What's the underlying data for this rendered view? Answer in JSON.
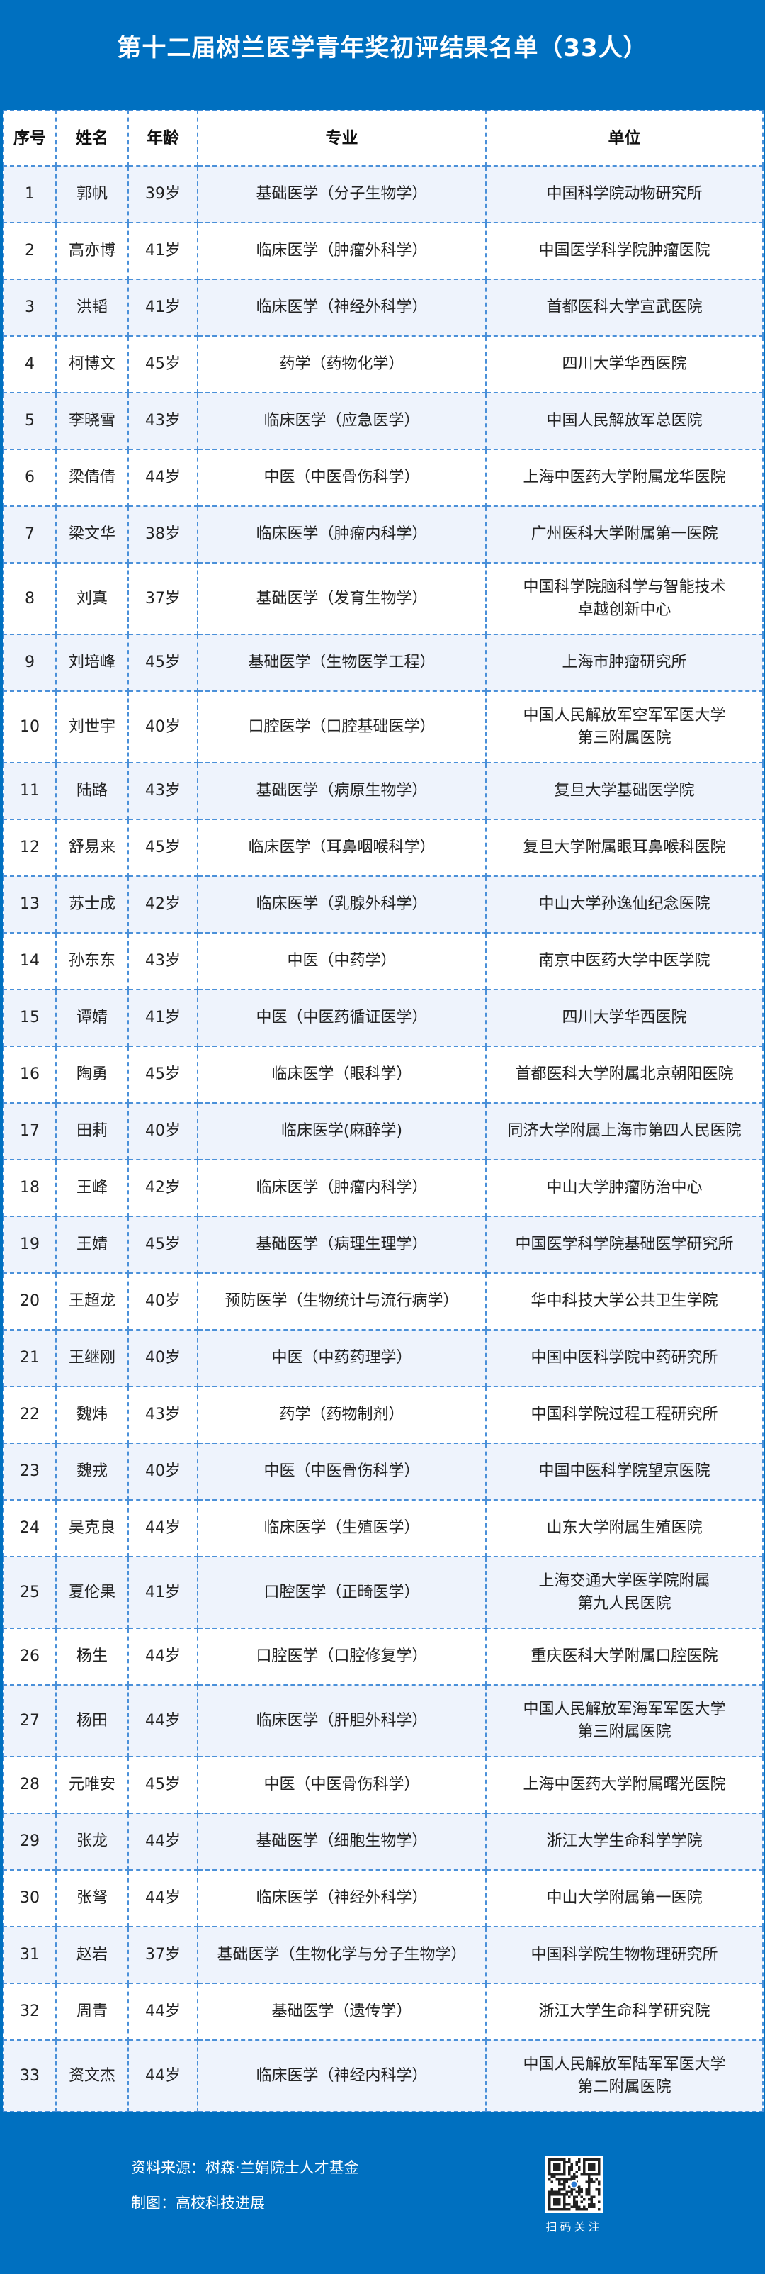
{
  "title": "第十二届树兰医学青年奖初评结果名单（33人）",
  "columns": [
    "序号",
    "姓名",
    "年龄",
    "专业",
    "单位"
  ],
  "rows": [
    [
      "1",
      "郭帆",
      "39岁",
      "基础医学（分子生物学）",
      "中国科学院动物研究所"
    ],
    [
      "2",
      "高亦博",
      "41岁",
      "临床医学（肿瘤外科学）",
      "中国医学科学院肿瘤医院"
    ],
    [
      "3",
      "洪韬",
      "41岁",
      "临床医学（神经外科学）",
      "首都医科大学宣武医院"
    ],
    [
      "4",
      "柯博文",
      "45岁",
      "药学（药物化学）",
      "四川大学华西医院"
    ],
    [
      "5",
      "李晓雪",
      "43岁",
      "临床医学（应急医学）",
      "中国人民解放军总医院"
    ],
    [
      "6",
      "梁倩倩",
      "44岁",
      "中医（中医骨伤科学）",
      "上海中医药大学附属龙华医院"
    ],
    [
      "7",
      "梁文华",
      "38岁",
      "临床医学（肿瘤内科学）",
      "广州医科大学附属第一医院"
    ],
    [
      "8",
      "刘真",
      "37岁",
      "基础医学（发育生物学）",
      "中国科学院脑科学与智能技术\n卓越创新中心"
    ],
    [
      "9",
      "刘培峰",
      "45岁",
      "基础医学（生物医学工程）",
      "上海市肿瘤研究所"
    ],
    [
      "10",
      "刘世宇",
      "40岁",
      "口腔医学（口腔基础医学）",
      "中国人民解放军空军军医大学\n第三附属医院"
    ],
    [
      "11",
      "陆路",
      "43岁",
      "基础医学（病原生物学）",
      "复旦大学基础医学院"
    ],
    [
      "12",
      "舒易来",
      "45岁",
      "临床医学（耳鼻咽喉科学）",
      "复旦大学附属眼耳鼻喉科医院"
    ],
    [
      "13",
      "苏士成",
      "42岁",
      "临床医学（乳腺外科学）",
      "中山大学孙逸仙纪念医院"
    ],
    [
      "14",
      "孙东东",
      "43岁",
      "中医（中药学）",
      "南京中医药大学中医学院"
    ],
    [
      "15",
      "谭婧",
      "41岁",
      "中医（中医药循证医学）",
      "四川大学华西医院"
    ],
    [
      "16",
      "陶勇",
      "45岁",
      "临床医学（眼科学）",
      "首都医科大学附属北京朝阳医院"
    ],
    [
      "17",
      "田莉",
      "40岁",
      "临床医学(麻醉学)",
      "同济大学附属上海市第四人民医院"
    ],
    [
      "18",
      "王峰",
      "42岁",
      "临床医学（肿瘤内科学）",
      "中山大学肿瘤防治中心"
    ],
    [
      "19",
      "王婧",
      "45岁",
      "基础医学（病理生理学）",
      "中国医学科学院基础医学研究所"
    ],
    [
      "20",
      "王超龙",
      "40岁",
      "预防医学（生物统计与流行病学）",
      "华中科技大学公共卫生学院"
    ],
    [
      "21",
      "王继刚",
      "40岁",
      "中医（中药药理学）",
      "中国中医科学院中药研究所"
    ],
    [
      "22",
      "魏炜",
      "43岁",
      "药学（药物制剂）",
      "中国科学院过程工程研究所"
    ],
    [
      "23",
      "魏戎",
      "40岁",
      "中医（中医骨伤科学）",
      "中国中医科学院望京医院"
    ],
    [
      "24",
      "吴克良",
      "44岁",
      "临床医学（生殖医学）",
      "山东大学附属生殖医院"
    ],
    [
      "25",
      "夏伦果",
      "41岁",
      "口腔医学（正畸医学）",
      "上海交通大学医学院附属\n第九人民医院"
    ],
    [
      "26",
      "杨生",
      "44岁",
      "口腔医学（口腔修复学）",
      "重庆医科大学附属口腔医院"
    ],
    [
      "27",
      "杨田",
      "44岁",
      "临床医学（肝胆外科学）",
      "中国人民解放军海军军医大学\n第三附属医院"
    ],
    [
      "28",
      "元唯安",
      "45岁",
      "中医（中医骨伤科学）",
      "上海中医药大学附属曙光医院"
    ],
    [
      "29",
      "张龙",
      "44岁",
      "基础医学（细胞生物学）",
      "浙江大学生命科学学院"
    ],
    [
      "30",
      "张弩",
      "44岁",
      "临床医学（神经外科学）",
      "中山大学附属第一医院"
    ],
    [
      "31",
      "赵岩",
      "37岁",
      "基础医学（生物化学与分子生物学）",
      "中国科学院生物物理研究所"
    ],
    [
      "32",
      "周青",
      "44岁",
      "基础医学（遗传学）",
      "浙江大学生命科学研究院"
    ],
    [
      "33",
      "资文杰",
      "44岁",
      "临床医学（神经内科学）",
      "中国人民解放军陆军军医大学\n第二附属医院"
    ]
  ],
  "footer": {
    "source": "资料来源：树森·兰娟院士人才基金",
    "made_by": "制图：高校科技进展",
    "qr_label": "扫码关注"
  },
  "colors": {
    "brand_blue": "#0070c0",
    "row_alt": "#eef3fc",
    "border": "#4a90d9"
  }
}
